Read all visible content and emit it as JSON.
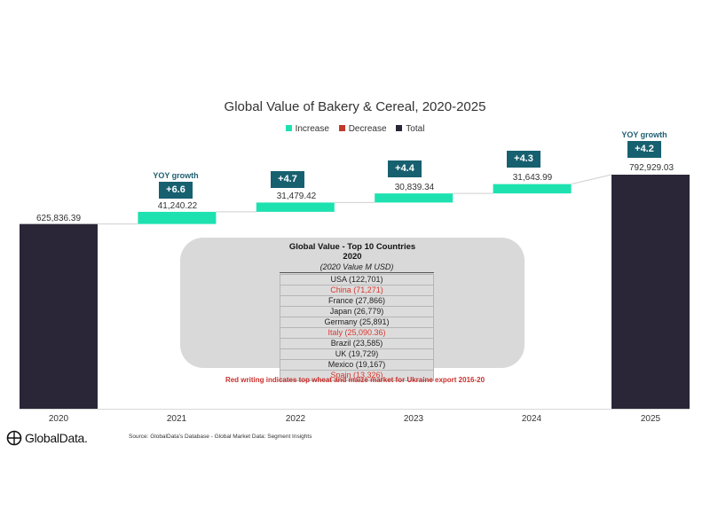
{
  "colors": {
    "increase": "#1de2b0",
    "decrease": "#c0392b",
    "total": "#2b2637",
    "badge": "#17606f"
  },
  "chart_data": {
    "type": "waterfall",
    "title": "Global Value of Bakery & Cereal, 2020-2025",
    "legend": [
      "Increase",
      "Decrease",
      "Total"
    ],
    "legend_position": "top-center",
    "categories": [
      "2020",
      "2021",
      "2022",
      "2023",
      "2024",
      "2025"
    ],
    "steps": [
      {
        "category": "2020",
        "kind": "total",
        "value": 625836.39,
        "label": "625,836.39"
      },
      {
        "category": "2021",
        "kind": "increase",
        "value": 41240.22,
        "label": "41,240.22",
        "yoy": "+6.6"
      },
      {
        "category": "2022",
        "kind": "increase",
        "value": 31479.42,
        "label": "31,479.42",
        "yoy": "+4.7"
      },
      {
        "category": "2023",
        "kind": "increase",
        "value": 30839.34,
        "label": "30,839.34",
        "yoy": "+4.4"
      },
      {
        "category": "2024",
        "kind": "increase",
        "value": 31643.99,
        "label": "31,643.99",
        "yoy": "+4.3"
      },
      {
        "category": "2025",
        "kind": "total",
        "value": 792929.03,
        "label": "792,929.03",
        "yoy": "+4.2"
      }
    ],
    "yoy_caption": "YOY growth",
    "grid": false
  },
  "panel": {
    "title_line1": "Global Value -  Top 10 Countries",
    "title_line2": "2020",
    "subtitle": "(2020 Value M USD)",
    "countries": [
      {
        "text": "USA (122,701)",
        "red": false
      },
      {
        "text": "China (71,271)",
        "red": true
      },
      {
        "text": "France (27,866)",
        "red": false
      },
      {
        "text": "Japan (26,779)",
        "red": false
      },
      {
        "text": "Germany (25,891)",
        "red": false
      },
      {
        "text": "Italy (25,090.36)",
        "red": true
      },
      {
        "text": "Brazil (23,585)",
        "red": false
      },
      {
        "text": "UK (19,729)",
        "red": false
      },
      {
        "text": "Mexico (19,167)",
        "red": false
      },
      {
        "text": "Spain (13,326)",
        "red": true
      }
    ]
  },
  "note": "Red writing indicates top wheat and maize market for Ukraine export 2016-20",
  "footer": {
    "logo_text": "GlobalData.",
    "source": "Source: GlobalData's Database -  Global Market Data: Segment Insights"
  }
}
